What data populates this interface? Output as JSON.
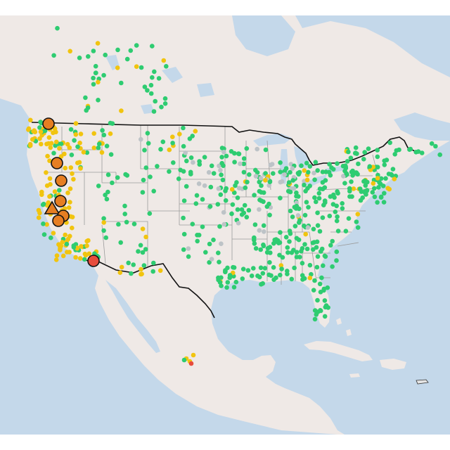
{
  "map": {
    "colors": {
      "water": "#c4d8ea",
      "land": "#efe9e6",
      "land_light": "#f3eeeb",
      "state_border": "#9a9a9a",
      "country_border": "#111111",
      "good": "#2ecc71",
      "moderate": "#f1c40f",
      "usg": "#e67e22",
      "unhealthy": "#e74c3c",
      "no_data": "#bdc3c7"
    },
    "dot_categories": [
      "good",
      "moderate",
      "usg",
      "unhealthy",
      "no_data"
    ],
    "large_markers": [
      {
        "shape": "circle",
        "category": "usg"
      },
      {
        "shape": "circle",
        "category": "usg"
      },
      {
        "shape": "circle",
        "category": "usg"
      },
      {
        "shape": "circle",
        "category": "usg"
      },
      {
        "shape": "triangle",
        "category": "usg"
      },
      {
        "shape": "circle",
        "category": "usg"
      },
      {
        "shape": "circle",
        "category": "usg"
      },
      {
        "shape": "circle",
        "category": "unhealthy"
      }
    ]
  }
}
